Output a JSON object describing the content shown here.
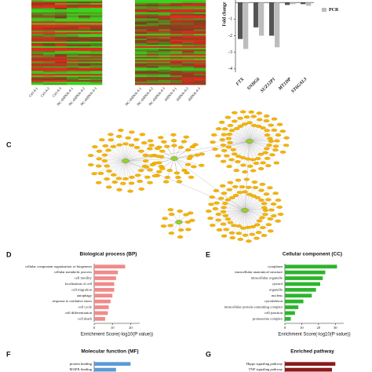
{
  "panel_labels": [
    "C",
    "D",
    "E",
    "F",
    "G"
  ],
  "heatmaps": [
    {
      "columns": [
        "Ctrl-4-1",
        "Ctrl-4-2",
        "Ctrl-4-3",
        "NC-shRNA-4-1",
        "NC-shRNA-4-2",
        "NC-shRNA-4-3"
      ]
    },
    {
      "columns": [
        "NC-shRNA-4-1",
        "NC-shRNA-4-2",
        "NC-shRNA-4-3",
        "shRNA-4-1",
        "shRNA-4-2",
        "shRNA-4-3"
      ]
    }
  ],
  "chart_data": [
    {
      "type": "bar",
      "ylabel": "Fold change",
      "categories": [
        "FTX",
        "SNHG6",
        "SUZ12P1",
        "MT1DP",
        "ST6GAL3"
      ],
      "series": [
        {
          "color": "#555555",
          "values": [
            -2.2,
            -1.5,
            -2.0,
            -0.15,
            -0.1
          ]
        },
        {
          "name": "PCR",
          "color": "#bdbdbd",
          "values": [
            -2.8,
            -2.0,
            -2.7,
            -0.1,
            -0.2
          ]
        }
      ],
      "ylim": [
        -4.2,
        0.15
      ],
      "yticks": [
        -4,
        -3,
        -2,
        -1
      ]
    },
    {
      "type": "barh",
      "title": "Biological process (BP)",
      "color": "#f08a8a",
      "categories": [
        "cellular component organization or biogenesis",
        "cellular metabolic process",
        "cell motility",
        "localization of cell",
        "cell migration",
        "autophagy",
        "response to oxidative stress",
        "cell cycle",
        "cell differentiation",
        "cell death"
      ],
      "values": [
        17,
        13,
        12,
        11,
        11,
        10,
        9,
        8,
        7.5,
        6
      ],
      "xlim": [
        0,
        25
      ],
      "xticks": [
        0,
        10,
        20
      ],
      "xlabel": "Enrichment Score(-log10(P value))"
    },
    {
      "type": "barh",
      "title": "Cellular component (CC)",
      "color": "#2db52d",
      "categories": [
        "cytoplasm",
        "intracellular anatomical structure",
        "intracellular organelle",
        "cytosol",
        "organelle",
        "nucleus",
        "cytoskeleton",
        "intracellular protein-containing complex",
        "cell junction",
        "proteasome complex"
      ],
      "values": [
        31,
        24,
        22.5,
        21,
        18.5,
        16,
        11,
        8,
        6,
        3.5
      ],
      "xlim": [
        0,
        35
      ],
      "xticks": [
        0,
        10,
        20,
        30
      ],
      "xlabel": "Enrichment Score(-log10(P value))"
    },
    {
      "type": "barh",
      "title": "Molecular function (MF)",
      "color": "#5b9bd5",
      "categories": [
        "protein binding",
        "MAPK binding"
      ],
      "values": [
        20,
        12
      ],
      "xlim": [
        0,
        25
      ]
    },
    {
      "type": "barh",
      "title": "Enriched pathway",
      "color": "#8b1a1a",
      "categories": [
        "Hippo signaling pathway",
        "TNF signaling pathway"
      ],
      "values": [
        30,
        28
      ],
      "xlim": [
        0,
        35
      ]
    }
  ]
}
